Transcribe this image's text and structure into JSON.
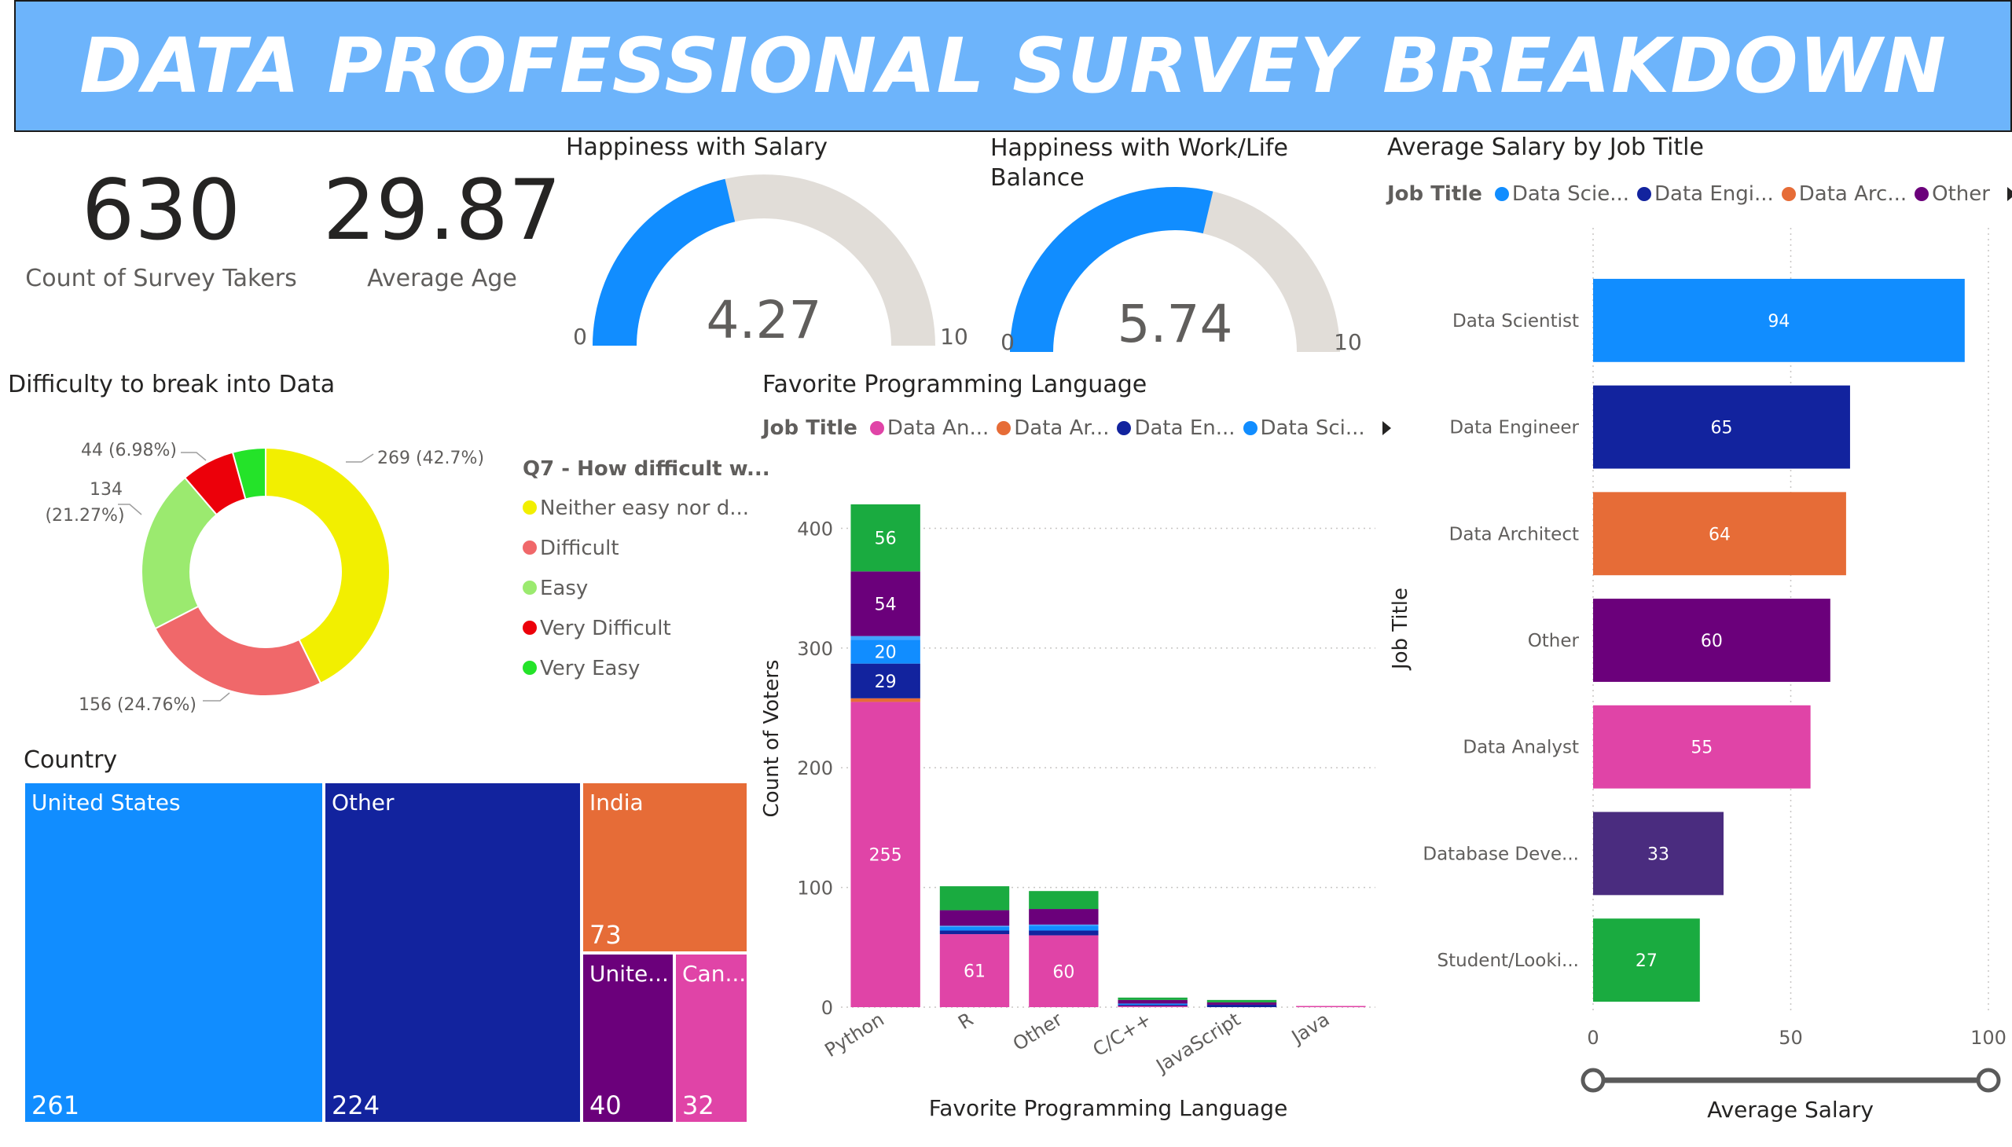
{
  "title": "DATA PROFESSIONAL SURVEY BREAKDOWN",
  "kpis": {
    "survey_takers": {
      "value": "630",
      "label": "Count of Survey Takers"
    },
    "average_age": {
      "value": "29.87",
      "label": "Average Age"
    }
  },
  "gauges": {
    "salary": {
      "title": "Happiness with Salary",
      "value": 4.27,
      "value_text": "4.27",
      "min": "0",
      "max": "10"
    },
    "worklife": {
      "title_line1": "Happiness with Work/Life",
      "title_line2": "Balance",
      "value": 5.74,
      "value_text": "5.74",
      "min": "0",
      "max": "10"
    }
  },
  "difficulty": {
    "title": "Difficulty to break into Data",
    "legend_title": "Q7 - How difficult w...",
    "legend_items": [
      "Neither easy nor d...",
      "Difficult",
      "Easy",
      "Very Difficult",
      "Very Easy"
    ],
    "label_269": "269 (42.7%)",
    "label_156": "156 (24.76%)",
    "label_134_a": "134",
    "label_134_b": "(21.27%)",
    "label_44": "44 (6.98%)"
  },
  "country": {
    "title": "Country",
    "tiles": [
      {
        "label": "United States",
        "value": "261"
      },
      {
        "label": "Other",
        "value": "224"
      },
      {
        "label": "India",
        "value": "73"
      },
      {
        "label": "Unite...",
        "value": "40"
      },
      {
        "label": "Can...",
        "value": "32"
      }
    ]
  },
  "languages": {
    "title": "Favorite Programming Language",
    "legend_title": "Job Title",
    "legend_items": [
      "Data An...",
      "Data Ar...",
      "Data En...",
      "Data Sci..."
    ],
    "xlabel": "Favorite Programming Language",
    "ylabel": "Count of Voters"
  },
  "salary_by_title": {
    "title": "Average Salary by Job Title",
    "legend_title": "Job Title",
    "legend_items": [
      "Data Scie...",
      "Data Engi...",
      "Data Arc...",
      "Other"
    ],
    "ylabel": "Job Title",
    "xlabel": "Average Salary"
  },
  "colors": {
    "data_scientist": "#118dff",
    "data_engineer": "#12239e",
    "data_architect": "#e66c37",
    "other": "#6b007b",
    "data_analyst": "#e044a7",
    "database_developer": "#4a2c7f",
    "student": "#1aab40",
    "gauge_fill": "#118dff",
    "gauge_track": "#e1ddd8"
  },
  "chart_data": [
    {
      "type": "pie",
      "categories": [
        "Neither easy nor d...",
        "Difficult",
        "Easy",
        "Very Difficult",
        "Very Easy"
      ],
      "values": [
        269,
        156,
        134,
        44,
        27
      ],
      "colors": [
        "#f2ef00",
        "#f0686a",
        "#9bea6f",
        "#ec000a",
        "#24e329"
      ],
      "data_labels": [
        "269 (42.7%)",
        "156 (24.76%)",
        "134 (21.27%)",
        "44 (6.98%)",
        ""
      ]
    },
    {
      "type": "bar",
      "stacked": true,
      "categories": [
        "Python",
        "R",
        "Other",
        "C/C++",
        "JavaScript",
        "Java"
      ],
      "ylim": [
        0,
        420
      ],
      "yticks": [
        0,
        100,
        200,
        300,
        400
      ],
      "series": [
        {
          "name": "Data An...",
          "color": "#e044a7",
          "values": [
            255,
            61,
            60,
            1,
            0,
            1
          ],
          "labels": [
            "255",
            "61",
            "60",
            "",
            "",
            ""
          ]
        },
        {
          "name": "Data Ar...",
          "color": "#e66c37",
          "values": [
            3,
            0,
            0,
            0,
            0,
            0
          ],
          "labels": [
            "",
            "",
            "",
            "",
            "",
            ""
          ]
        },
        {
          "name": "Data En...",
          "color": "#12239e",
          "values": [
            29,
            3,
            4,
            1,
            2,
            0
          ],
          "labels": [
            "29",
            "",
            "",
            "",
            "",
            ""
          ]
        },
        {
          "name": "Data Sci...",
          "color": "#118dff",
          "values": [
            20,
            3,
            4,
            1,
            0,
            0
          ],
          "labels": [
            "20",
            "",
            "",
            "",
            "",
            ""
          ]
        },
        {
          "color": "#41a4ff",
          "values": [
            3,
            1,
            1,
            0,
            0,
            0
          ],
          "labels": [
            "",
            "",
            "",
            "",
            "",
            ""
          ]
        },
        {
          "color": "#6b007b",
          "values": [
            54,
            13,
            13,
            3,
            2,
            0
          ],
          "labels": [
            "54",
            "",
            "",
            "",
            "",
            ""
          ]
        },
        {
          "color": "#1aab40",
          "values": [
            56,
            20,
            15,
            2,
            2,
            0
          ],
          "labels": [
            "56",
            "",
            "",
            "",
            "",
            ""
          ]
        }
      ]
    },
    {
      "type": "bar",
      "orientation": "horizontal",
      "categories": [
        "Data Scientist",
        "Data Engineer",
        "Data Architect",
        "Other",
        "Data Analyst",
        "Database Deve...",
        "Student/Looki..."
      ],
      "values": [
        94,
        65,
        64,
        60,
        55,
        33,
        27
      ],
      "labels": [
        "94",
        "65",
        "64",
        "60",
        "55",
        "33",
        "27"
      ],
      "colors": [
        "#118dff",
        "#12239e",
        "#e66c37",
        "#6b007b",
        "#e044a7",
        "#4a2c7f",
        "#1aab40"
      ],
      "xlim": [
        0,
        100
      ],
      "xticks": [
        0,
        50,
        100
      ]
    }
  ]
}
